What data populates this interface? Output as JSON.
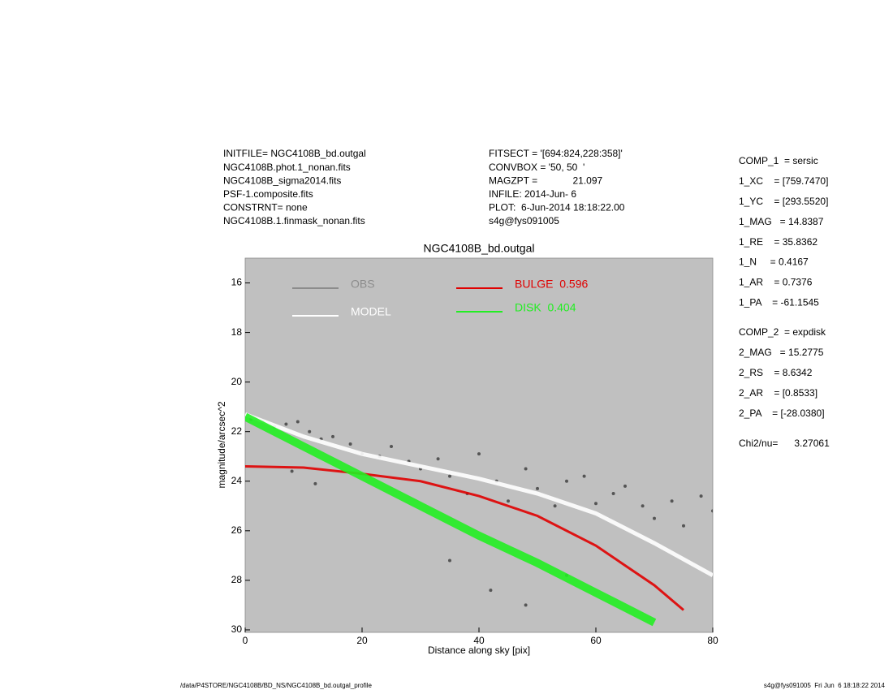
{
  "header": {
    "left": [
      "INITFILE= NGC4108B_bd.outgal",
      "NGC4108B.phot.1_nonan.fits",
      "NGC4108B_sigma2014.fits",
      "PSF-1.composite.fits",
      "CONSTRNT= none",
      "NGC4108B.1.finmask_nonan.fits"
    ],
    "middle": [
      "FITSECT = '[694:824,228:358]'",
      "CONVBOX = '50, 50  '",
      "MAGZPT =             21.097",
      "INFILE: 2014-Jun- 6",
      "PLOT:  6-Jun-2014 18:18:22.00",
      "s4g@fys091005"
    ]
  },
  "params": {
    "comp1": [
      "COMP_1  = sersic",
      "1_XC    = [759.7470]",
      "1_YC    = [293.5520]",
      "1_MAG   = 14.8387",
      "1_RE    = 35.8362",
      "1_N     = 0.4167",
      "1_AR    = 0.7376",
      "1_PA    = -61.1545"
    ],
    "comp2": [
      "COMP_2  = expdisk",
      "2_MAG   = 15.2775",
      "2_RS    = 8.6342",
      "2_AR    = [0.8533]",
      "2_PA    = [-28.0380]"
    ],
    "chi2": "Chi2/nu=      3.27061"
  },
  "footer": {
    "left": "/data/P4STORE/NGC4108B/BD_NS/NGC4108B_bd.outgal_profile",
    "right": "s4g@fys091005  Fri Jun  6 18:18:22 2014"
  },
  "chart_data": {
    "type": "line",
    "title": "NGC4108B_bd.outgal",
    "x_label": "Distance along sky [pix]",
    "y_label": "magnitude/arcsec^2",
    "xlim": [
      0,
      80
    ],
    "xticks": [
      0,
      20,
      40,
      60,
      80
    ],
    "ylim": [
      30.1,
      15
    ],
    "yticks": [
      16,
      18,
      20,
      22,
      24,
      26,
      28,
      30
    ],
    "background": "#c0c0c0",
    "series": [
      {
        "name": "OBS",
        "kind": "points",
        "color": "#555555",
        "legend_color": "#8c8c8c",
        "x": [
          1,
          3,
          5,
          7,
          9,
          11,
          13,
          15,
          18,
          20,
          23,
          25,
          28,
          30,
          33,
          35,
          38,
          40,
          43,
          45,
          48,
          50,
          53,
          55,
          58,
          60,
          63,
          65,
          68,
          70,
          73,
          75,
          78,
          80,
          35,
          42,
          48,
          55,
          8,
          12
        ],
        "values": [
          21.5,
          21.6,
          21.8,
          21.7,
          21.6,
          22.0,
          22.3,
          22.2,
          22.5,
          22.9,
          23.0,
          22.6,
          23.2,
          23.5,
          23.1,
          23.8,
          24.5,
          22.9,
          24.0,
          24.8,
          23.5,
          24.3,
          25.0,
          24.0,
          23.8,
          24.9,
          24.5,
          24.2,
          25.0,
          25.5,
          24.8,
          25.8,
          24.6,
          25.2,
          27.2,
          28.4,
          29.0,
          27.8,
          23.6,
          24.1
        ]
      },
      {
        "name": "MODEL",
        "kind": "line",
        "color": "#ffffff",
        "legend_color": "#ffffff",
        "x": [
          0,
          10,
          20,
          30,
          40,
          50,
          60,
          70,
          80
        ],
        "values": [
          21.3,
          22.2,
          22.9,
          23.4,
          23.9,
          24.5,
          25.3,
          26.5,
          27.8
        ]
      },
      {
        "name": "BULGE  0.596",
        "kind": "line",
        "color": "#e00000",
        "legend_color": "#e00000",
        "x": [
          0,
          10,
          20,
          30,
          40,
          50,
          60,
          70,
          75
        ],
        "values": [
          23.4,
          23.45,
          23.7,
          24.0,
          24.6,
          25.4,
          26.6,
          28.2,
          29.2
        ]
      },
      {
        "name": "DISK  0.404",
        "kind": "line",
        "color": "#22ee22",
        "legend_color": "#22ee22",
        "x": [
          0,
          10,
          20,
          30,
          40,
          50,
          60,
          70
        ],
        "values": [
          21.4,
          22.6,
          23.8,
          25.0,
          26.2,
          27.3,
          28.5,
          29.7
        ]
      }
    ]
  }
}
